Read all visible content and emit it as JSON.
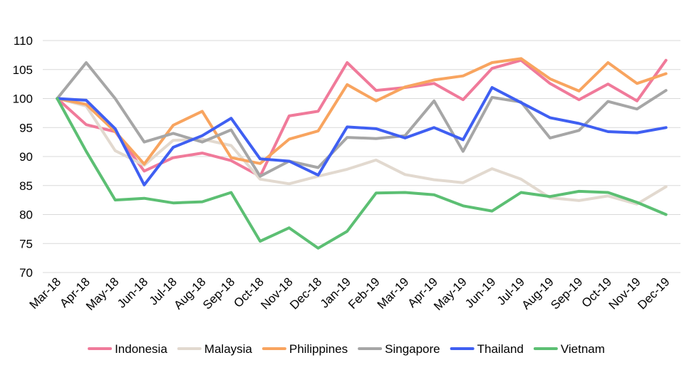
{
  "chart_data": {
    "type": "line",
    "title": "",
    "xlabel": "",
    "ylabel": "",
    "categories": [
      "Mar-18",
      "Apr-18",
      "May-18",
      "Jun-18",
      "Jul-18",
      "Aug-18",
      "Sep-18",
      "Oct-18",
      "Nov-18",
      "Dec-18",
      "Jan-19",
      "Feb-19",
      "Mar-19",
      "Apr-19",
      "May-19",
      "Jun-19",
      "Jul-19",
      "Aug-19",
      "Sep-19",
      "Oct-19",
      "Nov-19",
      "Dec-19"
    ],
    "ylim": [
      70,
      110
    ],
    "yticks": [
      70,
      75,
      80,
      85,
      90,
      95,
      100,
      105,
      110
    ],
    "grid": true,
    "legend_position": "bottom",
    "series": [
      {
        "name": "Indonesia",
        "color": "#f07a9a",
        "values": [
          100,
          95.5,
          94.3,
          87.5,
          89.8,
          90.6,
          89.3,
          86.6,
          97.0,
          97.8,
          106.2,
          101.4,
          101.9,
          102.6,
          99.8,
          105.2,
          106.6,
          102.6,
          99.8,
          102.5,
          99.6,
          106.6
        ]
      },
      {
        "name": "Malaysia",
        "color": "#e2d9cf",
        "values": [
          100,
          98.7,
          91.0,
          88.5,
          92.8,
          93.0,
          91.9,
          86.1,
          85.3,
          86.6,
          87.8,
          89.4,
          86.9,
          86.0,
          85.5,
          87.9,
          86.1,
          82.9,
          82.4,
          83.2,
          81.8,
          84.8
        ]
      },
      {
        "name": "Philippines",
        "color": "#f8a45f",
        "values": [
          100,
          99.0,
          94.3,
          88.7,
          95.4,
          97.8,
          89.8,
          88.8,
          93.0,
          94.4,
          102.4,
          99.6,
          102.0,
          103.2,
          103.9,
          106.2,
          106.9,
          103.4,
          101.3,
          106.2,
          102.6,
          104.3
        ]
      },
      {
        "name": "Singapore",
        "color": "#a6a6a6",
        "values": [
          100,
          106.2,
          100.0,
          92.5,
          94.0,
          92.5,
          94.6,
          86.6,
          89.2,
          88.1,
          93.3,
          93.1,
          93.6,
          99.6,
          90.9,
          100.2,
          99.4,
          93.2,
          94.5,
          99.5,
          98.2,
          101.4
        ]
      },
      {
        "name": "Thailand",
        "color": "#3f5ff2",
        "values": [
          100,
          99.7,
          94.8,
          85.1,
          91.6,
          93.6,
          96.6,
          89.6,
          89.2,
          86.8,
          95.1,
          94.8,
          93.2,
          95.0,
          92.9,
          101.9,
          99.3,
          96.7,
          95.7,
          94.3,
          94.1,
          95.0
        ]
      },
      {
        "name": "Vietnam",
        "color": "#5cbf73",
        "values": [
          100,
          90.9,
          82.5,
          82.8,
          82.0,
          82.2,
          83.8,
          75.4,
          77.7,
          74.2,
          77.1,
          83.7,
          83.8,
          83.4,
          81.5,
          80.6,
          83.8,
          83.1,
          84.0,
          83.8,
          82.1,
          80.0
        ]
      }
    ]
  }
}
